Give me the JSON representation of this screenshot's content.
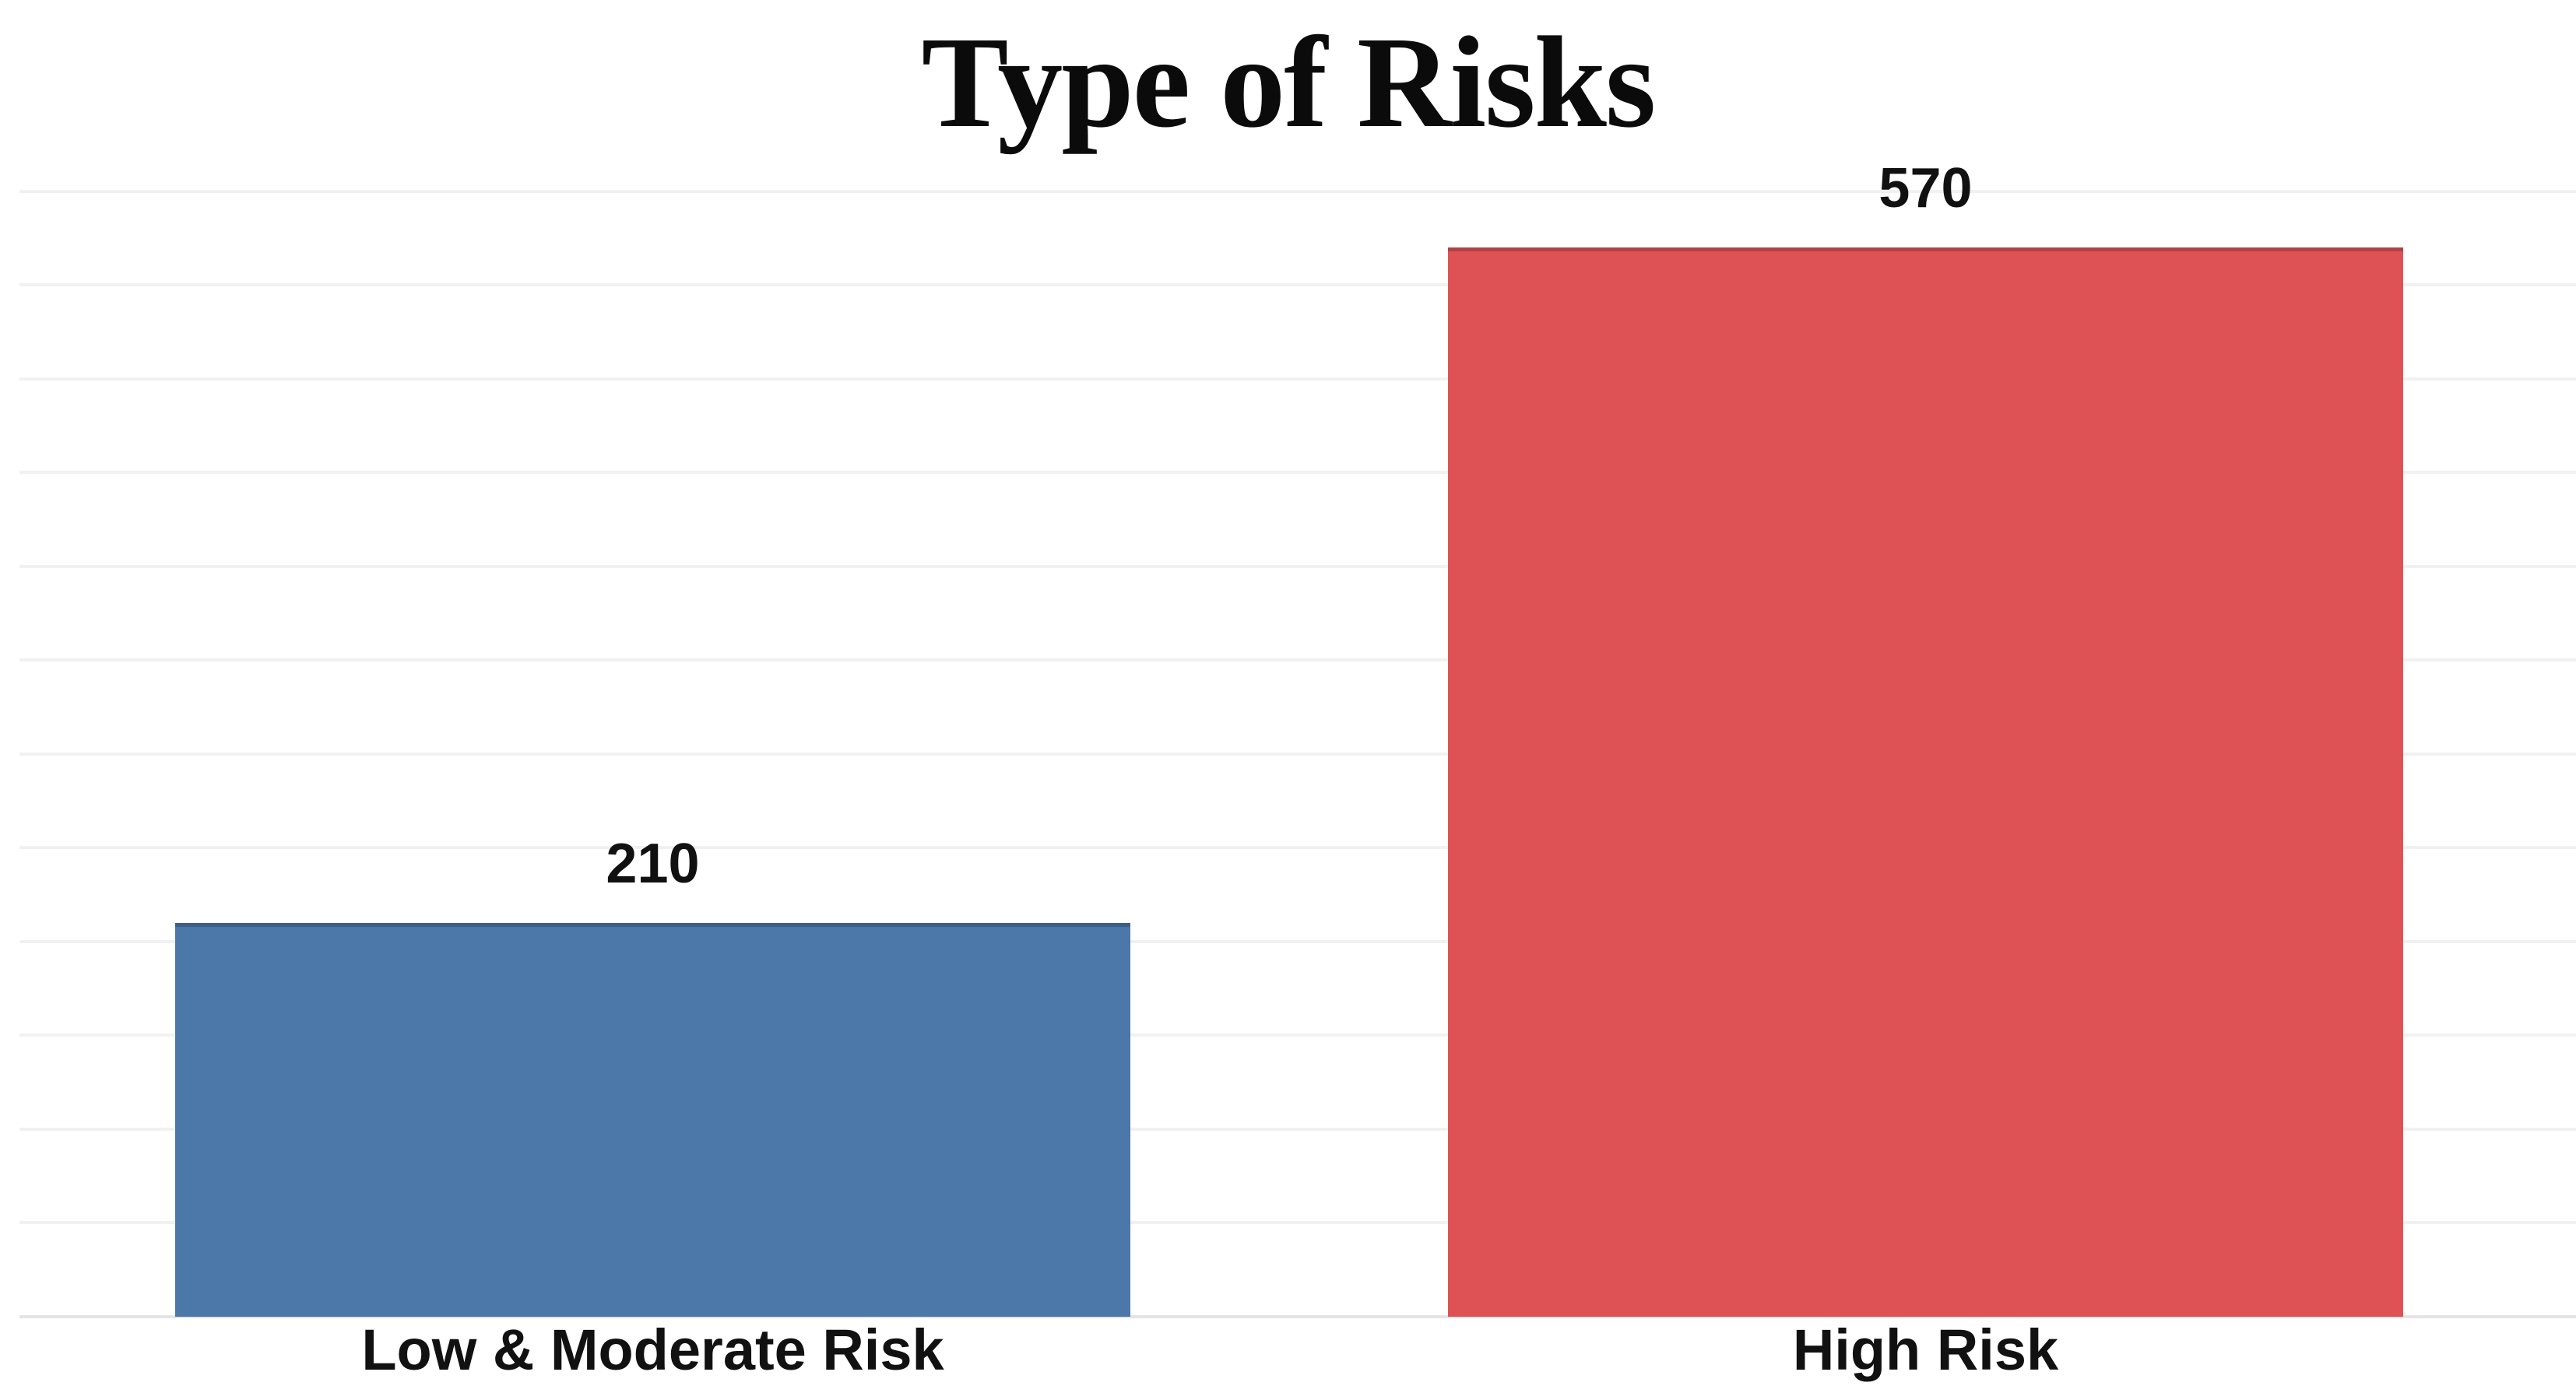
{
  "page": {
    "background": "#ffffff"
  },
  "chart_data": {
    "type": "bar",
    "title": "Type of Risks",
    "categories": [
      "Low & Moderate Risk",
      "High Risk"
    ],
    "values": [
      210,
      570
    ],
    "data_labels": [
      "210",
      "570"
    ],
    "bar_colors": [
      "#4b77a9",
      "#de5256"
    ],
    "xlabel": "",
    "ylabel": "",
    "ylim": [
      0,
      620
    ],
    "gridline_step": 50,
    "gridline_top_value": 600,
    "grid": "horizontal-light",
    "legend_position": "none",
    "axis_tick_labels": "none",
    "title_color": "#0b0b0b",
    "label_color": "#111111",
    "gridline_color": "#f1f1f1",
    "baseline_color": "#e4e4e4"
  }
}
